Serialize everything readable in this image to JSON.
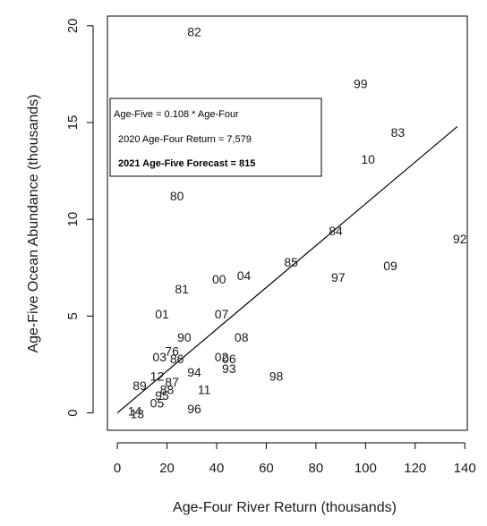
{
  "chart_data": {
    "type": "scatter",
    "xlabel": "Age-Four River Return (thousands)",
    "ylabel": "Age-Five Ocean Abundance (thousands)",
    "xlim": [
      -4,
      141
    ],
    "ylim": [
      -0.9,
      20.5
    ],
    "xticks": [
      0,
      20,
      40,
      60,
      80,
      100,
      120,
      140
    ],
    "yticks": [
      0,
      5,
      10,
      15,
      20
    ],
    "grid": false,
    "point_marker": "year-label",
    "points": [
      {
        "label": "82",
        "x": 31,
        "y": 19.7
      },
      {
        "label": "99",
        "x": 98,
        "y": 17.0
      },
      {
        "label": "83",
        "x": 113,
        "y": 14.5
      },
      {
        "label": "10",
        "x": 101,
        "y": 13.1
      },
      {
        "label": "80",
        "x": 24,
        "y": 11.2
      },
      {
        "label": "84",
        "x": 88,
        "y": 9.4
      },
      {
        "label": "92",
        "x": 138,
        "y": 9.0
      },
      {
        "label": "85",
        "x": 70,
        "y": 7.8
      },
      {
        "label": "09",
        "x": 110,
        "y": 7.6
      },
      {
        "label": "97",
        "x": 89,
        "y": 7.0
      },
      {
        "label": "04",
        "x": 51,
        "y": 7.1
      },
      {
        "label": "00",
        "x": 41,
        "y": 6.9
      },
      {
        "label": "81",
        "x": 26,
        "y": 6.4
      },
      {
        "label": "01",
        "x": 18,
        "y": 5.1
      },
      {
        "label": "07",
        "x": 42,
        "y": 5.1
      },
      {
        "label": "90",
        "x": 27,
        "y": 3.9
      },
      {
        "label": "08",
        "x": 50,
        "y": 3.9
      },
      {
        "label": "76",
        "x": 22,
        "y": 3.2
      },
      {
        "label": "03",
        "x": 17,
        "y": 2.9
      },
      {
        "label": "86",
        "x": 24,
        "y": 2.8
      },
      {
        "label": "02",
        "x": 42,
        "y": 2.9
      },
      {
        "label": "06",
        "x": 45,
        "y": 2.8
      },
      {
        "label": "93",
        "x": 45,
        "y": 2.3
      },
      {
        "label": "98",
        "x": 64,
        "y": 1.9
      },
      {
        "label": "94",
        "x": 31,
        "y": 2.1
      },
      {
        "label": "12",
        "x": 16,
        "y": 1.9
      },
      {
        "label": "87",
        "x": 22,
        "y": 1.6
      },
      {
        "label": "89",
        "x": 9,
        "y": 1.4
      },
      {
        "label": "88",
        "x": 20,
        "y": 1.2
      },
      {
        "label": "11",
        "x": 35,
        "y": 1.2
      },
      {
        "label": "95",
        "x": 18,
        "y": 0.9
      },
      {
        "label": "05",
        "x": 16,
        "y": 0.5
      },
      {
        "label": "96",
        "x": 31,
        "y": 0.2
      },
      {
        "label": "14",
        "x": 7,
        "y": 0.1
      },
      {
        "label": "13",
        "x": 8,
        "y": -0.05
      }
    ],
    "fit_line": {
      "slope": 0.108,
      "x": [
        0,
        137
      ]
    },
    "legend": {
      "placement": "upper-left",
      "lines": [
        {
          "text": "Age-Five = 0.108 * Age-Four",
          "bold": false
        },
        {
          "text": "2020 Age-Four Return = 7,579",
          "bold": false
        },
        {
          "text": "2021 Age-Five Forecast = 815",
          "bold": true
        }
      ]
    }
  }
}
